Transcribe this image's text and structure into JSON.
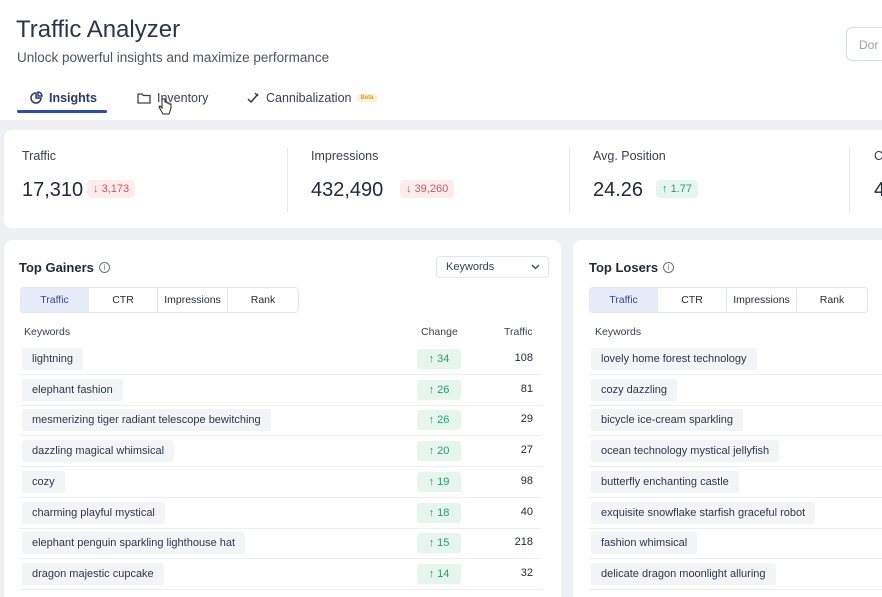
{
  "header": {
    "title": "Traffic Analyzer",
    "subtitle": "Unlock powerful insights and maximize performance",
    "right_button": "Dor"
  },
  "tabs": [
    {
      "label": "Insights",
      "icon": "pie-chart-icon",
      "active": true
    },
    {
      "label": "Inventory",
      "icon": "folder-icon",
      "active": false
    },
    {
      "label": "Cannibalization",
      "icon": "pencil-check-icon",
      "active": false,
      "badge": "Beta"
    }
  ],
  "metrics": [
    {
      "label": "Traffic",
      "value": "17,310",
      "delta": "3,173",
      "direction": "down"
    },
    {
      "label": "Impressions",
      "value": "432,490",
      "delta": "39,260",
      "direction": "down"
    },
    {
      "label": "Avg. Position",
      "value": "24.26",
      "delta": "1.77",
      "direction": "up"
    },
    {
      "label": "C",
      "value": "4"
    }
  ],
  "gainers": {
    "title": "Top Gainers",
    "dropdown": "Keywords",
    "segments": [
      "Traffic",
      "CTR",
      "Impressions",
      "Rank"
    ],
    "active_segment": "Traffic",
    "columns": {
      "keywords": "Keywords",
      "change": "Change",
      "traffic": "Traffic"
    },
    "rows": [
      {
        "keyword": "lightning",
        "change": "34",
        "traffic": "108"
      },
      {
        "keyword": "elephant fashion",
        "change": "26",
        "traffic": "81"
      },
      {
        "keyword": "mesmerizing tiger radiant telescope bewitching",
        "change": "26",
        "traffic": "29"
      },
      {
        "keyword": "dazzling magical whimsical",
        "change": "20",
        "traffic": "27"
      },
      {
        "keyword": "cozy",
        "change": "19",
        "traffic": "98"
      },
      {
        "keyword": "charming playful mystical",
        "change": "18",
        "traffic": "40"
      },
      {
        "keyword": "elephant penguin sparkling lighthouse hat",
        "change": "15",
        "traffic": "218"
      },
      {
        "keyword": "dragon majestic cupcake",
        "change": "14",
        "traffic": "32"
      }
    ]
  },
  "losers": {
    "title": "Top Losers",
    "segments": [
      "Traffic",
      "CTR",
      "Impressions",
      "Rank"
    ],
    "active_segment": "Traffic",
    "columns": {
      "keywords": "Keywords"
    },
    "rows": [
      {
        "keyword": "lovely home forest technology"
      },
      {
        "keyword": "cozy dazzling"
      },
      {
        "keyword": "bicycle ice-cream sparkling"
      },
      {
        "keyword": "ocean technology mystical jellyfish"
      },
      {
        "keyword": "butterfly enchanting castle"
      },
      {
        "keyword": "exquisite snowflake starfish graceful robot"
      },
      {
        "keyword": "fashion whimsical"
      },
      {
        "keyword": "delicate dragon moonlight alluring"
      }
    ]
  },
  "colors": {
    "accent": "#2f4aa8",
    "positive": "#2a9d6a",
    "negative": "#d9534f"
  }
}
